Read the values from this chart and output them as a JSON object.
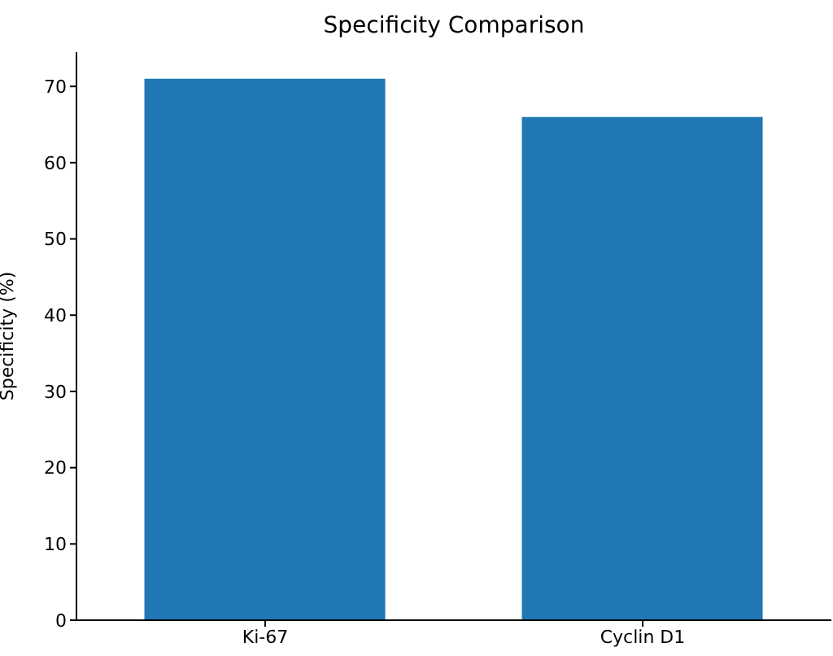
{
  "chart_data": {
    "type": "bar",
    "title": "Specificity Comparison",
    "ylabel": "Specificity (%)",
    "categories": [
      "Ki-67",
      "Cyclin D1"
    ],
    "values": [
      71,
      66
    ],
    "color": "#1f77b4",
    "ylim": [
      0,
      74.5
    ],
    "yticks": [
      0,
      10,
      20,
      30,
      40,
      50,
      60,
      70
    ],
    "grid": false,
    "legend": false
  }
}
